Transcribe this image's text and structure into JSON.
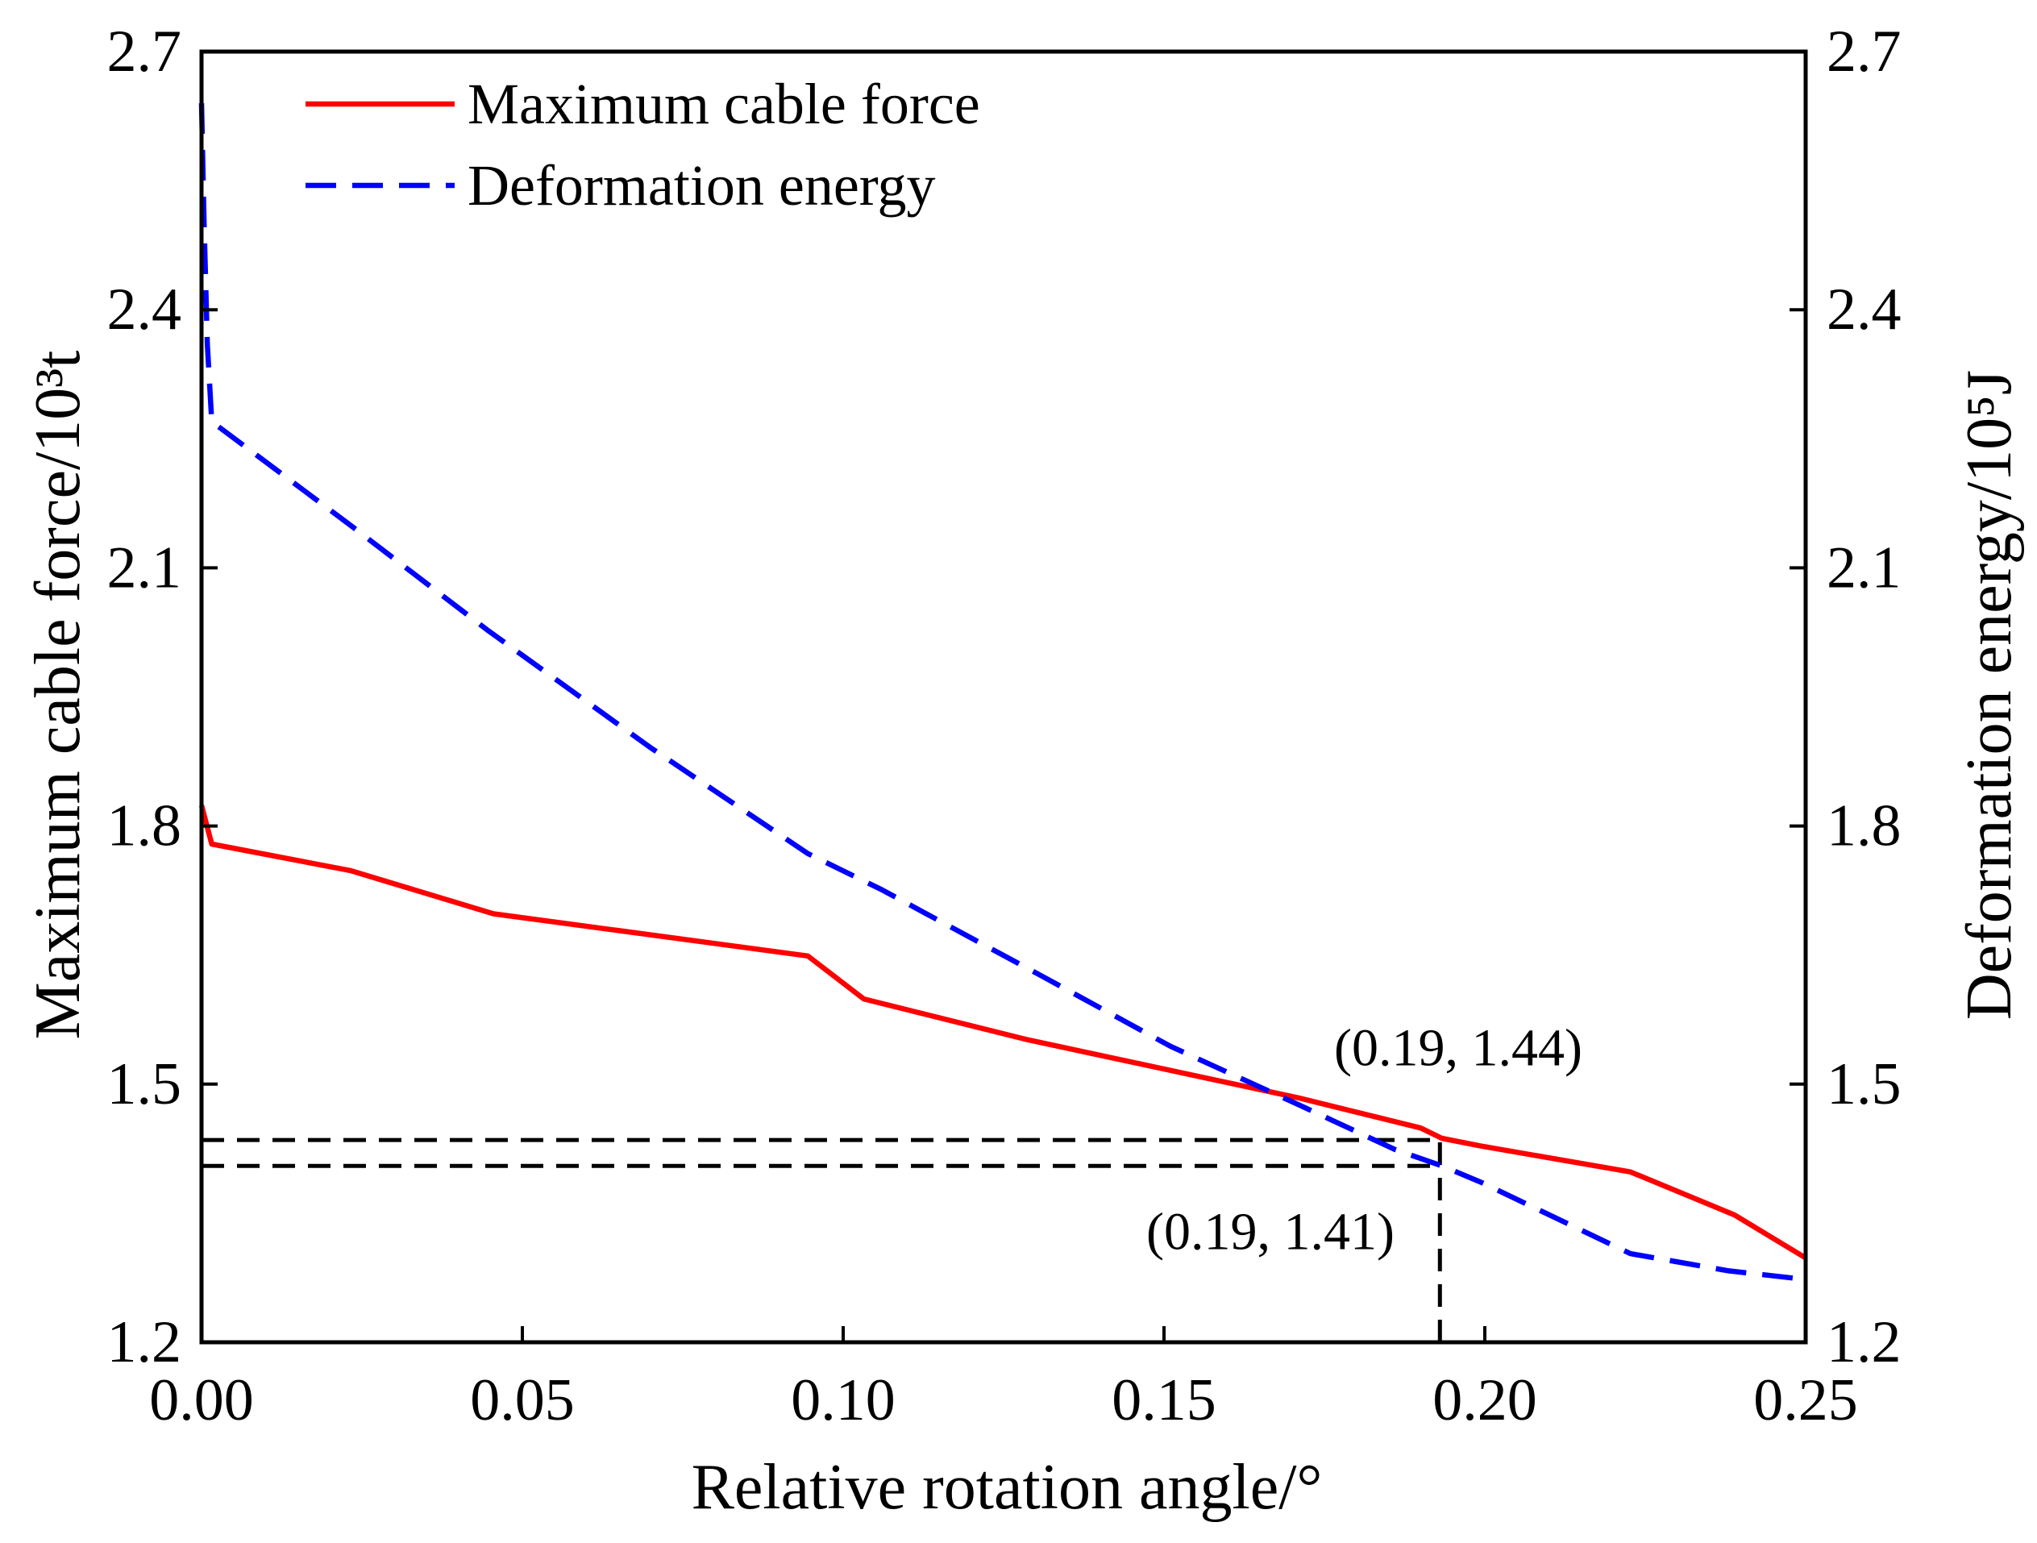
{
  "chart_data": {
    "type": "line",
    "title": "",
    "xlabel": "Relative rotation angle/°",
    "ylabel": "Maximum cable force/10³t",
    "ylabel_right": "Deformation energy/10⁵J",
    "xlim": [
      0,
      0.25
    ],
    "ylim": [
      1.2,
      2.7
    ],
    "ylim_right": [
      1.2,
      2.7
    ],
    "grid": false,
    "x_ticks": [
      0,
      0.05,
      0.1,
      0.15,
      0.2,
      0.25
    ],
    "x_tick_labels": [
      "0.00",
      "0.05",
      "0.10",
      "0.15",
      "0.20",
      "0.25"
    ],
    "y_ticks": [
      1.2,
      1.5,
      1.8,
      2.1,
      2.4,
      2.7
    ],
    "y_tick_labels": [
      "1.2",
      "1.5",
      "1.8",
      "2.1",
      "2.4",
      "2.7"
    ],
    "y_right_ticks": [
      1.2,
      1.5,
      1.8,
      2.1,
      2.4,
      2.7
    ],
    "y_right_tick_labels": [
      "1.2",
      "1.5",
      "1.8",
      "2.1",
      "2.4",
      "2.7"
    ],
    "series": [
      {
        "name": "Maximum cable force",
        "color": "#ff0000",
        "dashed": false,
        "right_axis": false,
        "x": [
          0,
          0.0016,
          0.0233,
          0.0455,
          0.0945,
          0.1032,
          0.1285,
          0.171,
          0.19,
          0.1933,
          0.1994,
          0.2227,
          0.2389,
          0.25
        ],
        "y": [
          1.824,
          1.779,
          1.748,
          1.698,
          1.649,
          1.599,
          1.552,
          1.484,
          1.449,
          1.437,
          1.428,
          1.398,
          1.348,
          1.298
        ]
      },
      {
        "name": "Deformation energy",
        "color": "#0000ff",
        "dashed": true,
        "right_axis": true,
        "x": [
          0,
          0.0004,
          0.0009,
          0.0016,
          0.0233,
          0.0445,
          0.0698,
          0.0945,
          0.106,
          0.1306,
          0.151,
          0.171,
          0.186,
          0.1933,
          0.1994,
          0.2227,
          0.238,
          0.25
        ],
        "y": [
          2.64,
          2.5,
          2.36,
          2.27,
          2.149,
          2.028,
          1.892,
          1.768,
          1.726,
          1.627,
          1.544,
          1.476,
          1.424,
          1.405,
          1.386,
          1.303,
          1.283,
          1.273
        ]
      }
    ],
    "horizontal_refs": [
      {
        "y": 1.435,
        "x_from": 0,
        "x_to": 0.193
      },
      {
        "y": 1.405,
        "x_from": 0,
        "x_to": 0.193
      }
    ],
    "vertical_refs": [
      {
        "x": 0.193,
        "y_from": 1.2,
        "y_to": 1.435
      }
    ],
    "ref_color": "#000000",
    "annotations": [
      {
        "text": "(0.19, 1.44)"
      },
      {
        "text": "(0.19, 1.41)"
      }
    ]
  }
}
